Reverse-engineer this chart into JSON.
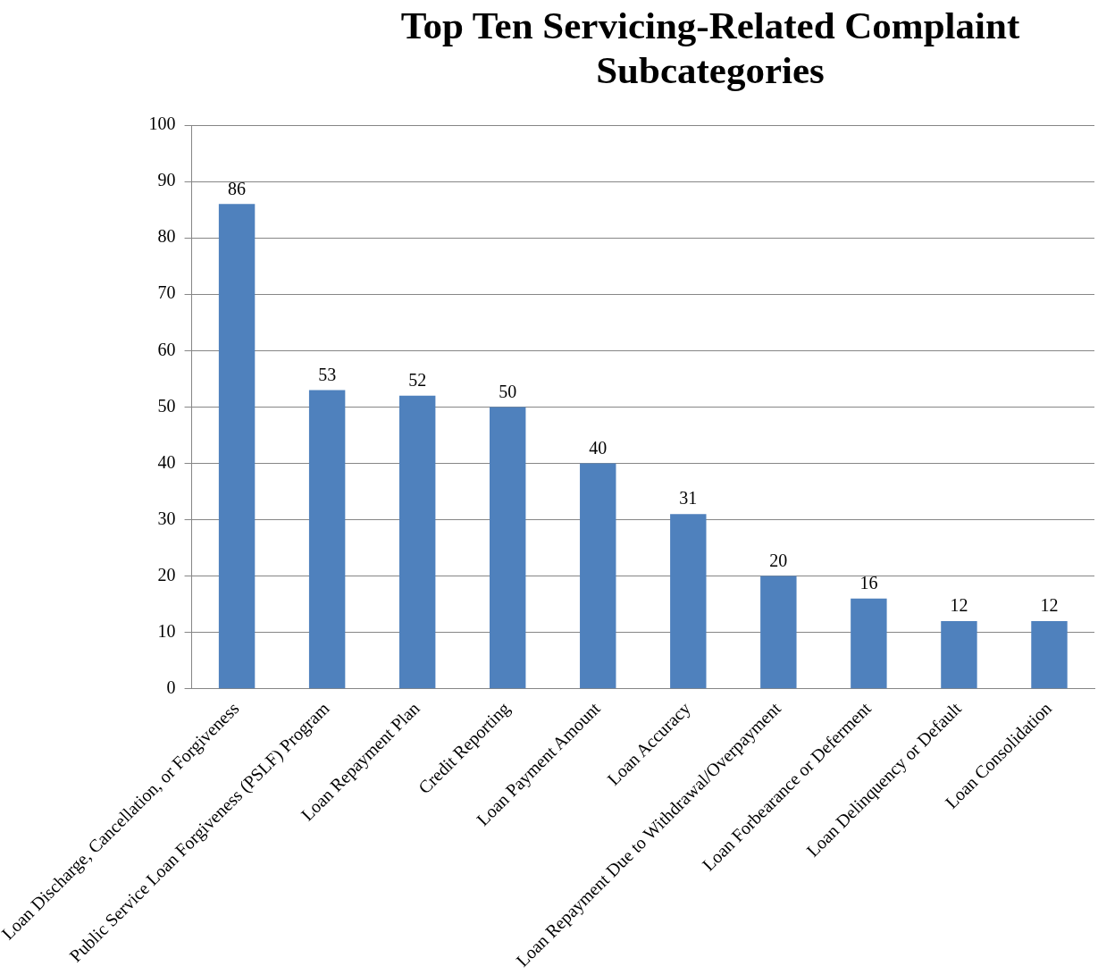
{
  "chart_data": {
    "type": "bar",
    "title": "Top Ten Servicing-Related Complaint Subcategories",
    "categories": [
      "Loan Discharge, Cancellation, or Forgiveness",
      "Public Service Loan Forgiveness (PSLF) Program",
      "Loan Repayment Plan",
      "Credit Reporting",
      "Loan Payment Amount",
      "Loan Accuracy",
      "Loan Repayment Due to Withdrawal/Overpayment",
      "Loan Forbearance or Deferment",
      "Loan Delinquency or Default",
      "Loan Consolidation"
    ],
    "values": [
      86,
      53,
      52,
      50,
      40,
      31,
      20,
      16,
      12,
      12
    ],
    "color": "#4f81bd",
    "ylim": [
      0,
      100
    ],
    "yticks": [
      0,
      10,
      20,
      30,
      40,
      50,
      60,
      70,
      80,
      90,
      100
    ],
    "grid": "y",
    "legend": false,
    "data_labels": true
  }
}
